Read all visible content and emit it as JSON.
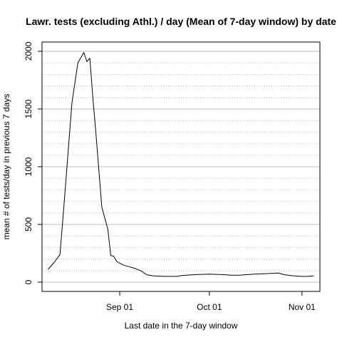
{
  "chart_data": {
    "type": "line",
    "title": "Lawr. tests (excluding Athl.) / day (Mean of 7-day window) by date",
    "xlabel": "Last date in the 7-day window",
    "ylabel": "mean # of tests/day in previous 7 days",
    "x_tick_labels": [
      "Sep 01",
      "Oct 01",
      "Nov 01"
    ],
    "x_tick_dates": [
      "2020-09-01",
      "2020-10-01",
      "2020-11-01"
    ],
    "y_ticks": [
      0,
      500,
      1000,
      1500,
      2000
    ],
    "xlim": [
      "2020-08-06",
      "2020-11-07"
    ],
    "ylim": [
      -80,
      2080
    ],
    "grid": {
      "major_y": [
        0,
        500,
        1000,
        1500,
        2000
      ],
      "minor_y": [
        100,
        200,
        300,
        400,
        600,
        700,
        800,
        900,
        1100,
        1200,
        1300,
        1400,
        1600,
        1700,
        1800,
        1900
      ]
    },
    "colors": {
      "line": "#000000",
      "major_grid": "#bebebe",
      "minor_grid": "#bebebe",
      "box": "#000000"
    },
    "series": [
      {
        "x": [
          "2020-08-08",
          "2020-08-10",
          "2020-08-12",
          "2020-08-13",
          "2020-08-14",
          "2020-08-16",
          "2020-08-18",
          "2020-08-20",
          "2020-08-21",
          "2020-08-22",
          "2020-08-23",
          "2020-08-24",
          "2020-08-26",
          "2020-08-28",
          "2020-08-29",
          "2020-08-30",
          "2020-08-31",
          "2020-09-02",
          "2020-09-04",
          "2020-09-06",
          "2020-09-08",
          "2020-09-10",
          "2020-09-12",
          "2020-09-16",
          "2020-09-20",
          "2020-09-22",
          "2020-09-26",
          "2020-10-01",
          "2020-10-06",
          "2020-10-08",
          "2020-10-11",
          "2020-10-16",
          "2020-10-21",
          "2020-10-24",
          "2020-10-26",
          "2020-10-29",
          "2020-11-01",
          "2020-11-03",
          "2020-11-05"
        ],
        "y": [
          110,
          170,
          240,
          560,
          880,
          1550,
          1900,
          1990,
          1910,
          1940,
          1600,
          1300,
          650,
          460,
          230,
          225,
          180,
          150,
          135,
          120,
          100,
          65,
          55,
          50,
          50,
          58,
          65,
          70,
          65,
          60,
          60,
          70,
          75,
          80,
          65,
          55,
          50,
          50,
          55
        ]
      }
    ]
  }
}
